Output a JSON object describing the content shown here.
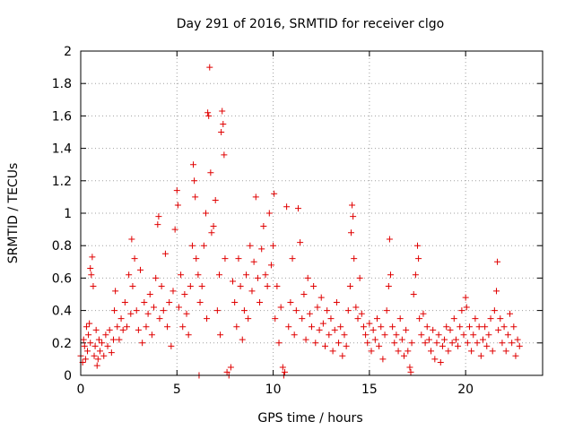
{
  "chart_data": {
    "type": "scatter",
    "title": "Day 291 of 2016, SRMTID for receiver clgo",
    "xlabel": "GPS time / hours",
    "ylabel": "SRMTID / TECUs",
    "xlim": [
      0,
      24
    ],
    "ylim": [
      0,
      2
    ],
    "xticks": [
      0,
      5,
      10,
      15,
      20
    ],
    "xtick_labels": [
      "0",
      "5",
      "10",
      "15",
      "20"
    ],
    "yticks": [
      0,
      0.2,
      0.4,
      0.6,
      0.8,
      1,
      1.2,
      1.4,
      1.6,
      1.8,
      2
    ],
    "ytick_labels": [
      "0",
      "0.2",
      "0.4",
      "0.6",
      "0.8",
      "1",
      "1.2",
      "1.4",
      "1.6",
      "1.8",
      "2"
    ],
    "grid": true,
    "marker": "+",
    "marker_color": "#e00000",
    "series": [
      {
        "name": "SRMTID",
        "points": [
          [
            0.0,
            0.12
          ],
          [
            0.1,
            0.08
          ],
          [
            0.15,
            0.22
          ],
          [
            0.2,
            0.18
          ],
          [
            0.25,
            0.1
          ],
          [
            0.3,
            0.3
          ],
          [
            0.35,
            0.15
          ],
          [
            0.4,
            0.25
          ],
          [
            0.45,
            0.32
          ],
          [
            0.5,
            0.2
          ],
          [
            0.5,
            0.66
          ],
          [
            0.55,
            0.62
          ],
          [
            0.6,
            0.73
          ],
          [
            0.65,
            0.55
          ],
          [
            0.7,
            0.12
          ],
          [
            0.75,
            0.18
          ],
          [
            0.8,
            0.28
          ],
          [
            0.85,
            0.06
          ],
          [
            0.9,
            0.1
          ],
          [
            0.95,
            0.22
          ],
          [
            1.0,
            0.15
          ],
          [
            1.1,
            0.2
          ],
          [
            1.2,
            0.12
          ],
          [
            1.3,
            0.25
          ],
          [
            1.4,
            0.18
          ],
          [
            1.5,
            0.28
          ],
          [
            1.6,
            0.14
          ],
          [
            1.7,
            0.22
          ],
          [
            1.75,
            0.4
          ],
          [
            1.8,
            0.52
          ],
          [
            1.9,
            0.3
          ],
          [
            2.0,
            0.22
          ],
          [
            2.1,
            0.35
          ],
          [
            2.2,
            0.28
          ],
          [
            2.3,
            0.45
          ],
          [
            2.4,
            0.3
          ],
          [
            2.5,
            0.62
          ],
          [
            2.6,
            0.38
          ],
          [
            2.65,
            0.84
          ],
          [
            2.7,
            0.55
          ],
          [
            2.8,
            0.72
          ],
          [
            2.9,
            0.4
          ],
          [
            3.0,
            0.28
          ],
          [
            3.1,
            0.65
          ],
          [
            3.2,
            0.2
          ],
          [
            3.3,
            0.45
          ],
          [
            3.4,
            0.3
          ],
          [
            3.5,
            0.38
          ],
          [
            3.6,
            0.5
          ],
          [
            3.7,
            0.25
          ],
          [
            3.8,
            0.42
          ],
          [
            3.9,
            0.6
          ],
          [
            4.0,
            0.93
          ],
          [
            4.05,
            0.98
          ],
          [
            4.1,
            0.35
          ],
          [
            4.2,
            0.55
          ],
          [
            4.3,
            0.4
          ],
          [
            4.4,
            0.75
          ],
          [
            4.5,
            0.3
          ],
          [
            4.6,
            0.45
          ],
          [
            4.7,
            0.18
          ],
          [
            4.8,
            0.52
          ],
          [
            4.9,
            0.9
          ],
          [
            5.0,
            1.14
          ],
          [
            5.05,
            1.05
          ],
          [
            5.1,
            0.42
          ],
          [
            5.2,
            0.62
          ],
          [
            5.3,
            0.3
          ],
          [
            5.4,
            0.5
          ],
          [
            5.5,
            0.38
          ],
          [
            5.6,
            0.25
          ],
          [
            5.7,
            0.55
          ],
          [
            5.8,
            0.8
          ],
          [
            5.85,
            1.3
          ],
          [
            5.9,
            1.2
          ],
          [
            5.95,
            1.1
          ],
          [
            6.0,
            0.72
          ],
          [
            6.1,
            0.62
          ],
          [
            6.15,
            0.0
          ],
          [
            6.2,
            0.45
          ],
          [
            6.3,
            0.55
          ],
          [
            6.4,
            0.8
          ],
          [
            6.5,
            1.0
          ],
          [
            6.55,
            0.35
          ],
          [
            6.6,
            1.62
          ],
          [
            6.65,
            1.6
          ],
          [
            6.7,
            1.9
          ],
          [
            6.75,
            1.25
          ],
          [
            6.8,
            0.88
          ],
          [
            6.9,
            0.92
          ],
          [
            7.0,
            1.08
          ],
          [
            7.1,
            0.4
          ],
          [
            7.2,
            0.62
          ],
          [
            7.25,
            0.25
          ],
          [
            7.3,
            1.5
          ],
          [
            7.35,
            1.63
          ],
          [
            7.4,
            1.55
          ],
          [
            7.45,
            1.36
          ],
          [
            7.5,
            0.72
          ],
          [
            7.6,
            0.02
          ],
          [
            7.7,
            0.0
          ],
          [
            7.8,
            0.05
          ],
          [
            7.9,
            0.58
          ],
          [
            8.0,
            0.45
          ],
          [
            8.1,
            0.3
          ],
          [
            8.2,
            0.72
          ],
          [
            8.3,
            0.55
          ],
          [
            8.4,
            0.22
          ],
          [
            8.5,
            0.4
          ],
          [
            8.6,
            0.62
          ],
          [
            8.7,
            0.35
          ],
          [
            8.8,
            0.8
          ],
          [
            8.9,
            0.52
          ],
          [
            9.0,
            0.7
          ],
          [
            9.1,
            1.1
          ],
          [
            9.2,
            0.6
          ],
          [
            9.3,
            0.45
          ],
          [
            9.4,
            0.78
          ],
          [
            9.5,
            0.92
          ],
          [
            9.6,
            0.62
          ],
          [
            9.7,
            0.55
          ],
          [
            9.8,
            1.0
          ],
          [
            9.9,
            0.68
          ],
          [
            10.0,
            0.8
          ],
          [
            10.05,
            1.12
          ],
          [
            10.1,
            0.35
          ],
          [
            10.2,
            0.55
          ],
          [
            10.3,
            0.2
          ],
          [
            10.4,
            0.42
          ],
          [
            10.5,
            0.05
          ],
          [
            10.55,
            0.0
          ],
          [
            10.6,
            0.02
          ],
          [
            10.7,
            1.04
          ],
          [
            10.8,
            0.3
          ],
          [
            10.9,
            0.45
          ],
          [
            11.0,
            0.72
          ],
          [
            11.1,
            0.25
          ],
          [
            11.2,
            0.4
          ],
          [
            11.3,
            1.03
          ],
          [
            11.4,
            0.82
          ],
          [
            11.5,
            0.35
          ],
          [
            11.6,
            0.5
          ],
          [
            11.7,
            0.22
          ],
          [
            11.8,
            0.6
          ],
          [
            11.9,
            0.38
          ],
          [
            12.0,
            0.3
          ],
          [
            12.1,
            0.55
          ],
          [
            12.2,
            0.2
          ],
          [
            12.3,
            0.42
          ],
          [
            12.4,
            0.28
          ],
          [
            12.5,
            0.48
          ],
          [
            12.6,
            0.32
          ],
          [
            12.7,
            0.18
          ],
          [
            12.8,
            0.4
          ],
          [
            12.9,
            0.25
          ],
          [
            13.0,
            0.35
          ],
          [
            13.1,
            0.15
          ],
          [
            13.2,
            0.28
          ],
          [
            13.3,
            0.45
          ],
          [
            13.4,
            0.2
          ],
          [
            13.5,
            0.3
          ],
          [
            13.6,
            0.12
          ],
          [
            13.7,
            0.25
          ],
          [
            13.8,
            0.18
          ],
          [
            13.9,
            0.4
          ],
          [
            14.0,
            0.55
          ],
          [
            14.05,
            0.88
          ],
          [
            14.1,
            1.05
          ],
          [
            14.15,
            0.98
          ],
          [
            14.2,
            0.72
          ],
          [
            14.3,
            0.42
          ],
          [
            14.4,
            0.35
          ],
          [
            14.5,
            0.6
          ],
          [
            14.6,
            0.38
          ],
          [
            14.7,
            0.3
          ],
          [
            14.8,
            0.25
          ],
          [
            14.9,
            0.2
          ],
          [
            15.0,
            0.32
          ],
          [
            15.1,
            0.15
          ],
          [
            15.2,
            0.28
          ],
          [
            15.3,
            0.22
          ],
          [
            15.4,
            0.35
          ],
          [
            15.5,
            0.18
          ],
          [
            15.6,
            0.3
          ],
          [
            15.7,
            0.1
          ],
          [
            15.8,
            0.25
          ],
          [
            15.9,
            0.4
          ],
          [
            16.0,
            0.55
          ],
          [
            16.05,
            0.84
          ],
          [
            16.1,
            0.62
          ],
          [
            16.2,
            0.3
          ],
          [
            16.3,
            0.2
          ],
          [
            16.4,
            0.25
          ],
          [
            16.5,
            0.15
          ],
          [
            16.6,
            0.35
          ],
          [
            16.7,
            0.22
          ],
          [
            16.8,
            0.12
          ],
          [
            16.9,
            0.28
          ],
          [
            17.0,
            0.15
          ],
          [
            17.1,
            0.05
          ],
          [
            17.15,
            0.02
          ],
          [
            17.2,
            0.2
          ],
          [
            17.3,
            0.5
          ],
          [
            17.4,
            0.62
          ],
          [
            17.5,
            0.8
          ],
          [
            17.55,
            0.72
          ],
          [
            17.6,
            0.35
          ],
          [
            17.7,
            0.25
          ],
          [
            17.8,
            0.38
          ],
          [
            17.9,
            0.2
          ],
          [
            18.0,
            0.3
          ],
          [
            18.1,
            0.22
          ],
          [
            18.2,
            0.15
          ],
          [
            18.3,
            0.28
          ],
          [
            18.4,
            0.1
          ],
          [
            18.5,
            0.2
          ],
          [
            18.6,
            0.25
          ],
          [
            18.7,
            0.08
          ],
          [
            18.8,
            0.18
          ],
          [
            18.9,
            0.22
          ],
          [
            19.0,
            0.3
          ],
          [
            19.1,
            0.15
          ],
          [
            19.2,
            0.28
          ],
          [
            19.3,
            0.2
          ],
          [
            19.4,
            0.35
          ],
          [
            19.5,
            0.22
          ],
          [
            19.6,
            0.18
          ],
          [
            19.7,
            0.3
          ],
          [
            19.8,
            0.4
          ],
          [
            19.9,
            0.25
          ],
          [
            20.0,
            0.48
          ],
          [
            20.05,
            0.42
          ],
          [
            20.1,
            0.2
          ],
          [
            20.2,
            0.3
          ],
          [
            20.3,
            0.15
          ],
          [
            20.4,
            0.25
          ],
          [
            20.5,
            0.35
          ],
          [
            20.6,
            0.2
          ],
          [
            20.7,
            0.3
          ],
          [
            20.8,
            0.12
          ],
          [
            20.9,
            0.22
          ],
          [
            21.0,
            0.3
          ],
          [
            21.1,
            0.18
          ],
          [
            21.2,
            0.25
          ],
          [
            21.3,
            0.35
          ],
          [
            21.4,
            0.15
          ],
          [
            21.5,
            0.4
          ],
          [
            21.6,
            0.52
          ],
          [
            21.65,
            0.7
          ],
          [
            21.7,
            0.28
          ],
          [
            21.8,
            0.35
          ],
          [
            21.9,
            0.2
          ],
          [
            22.0,
            0.3
          ],
          [
            22.1,
            0.15
          ],
          [
            22.2,
            0.25
          ],
          [
            22.3,
            0.38
          ],
          [
            22.4,
            0.2
          ],
          [
            22.5,
            0.3
          ],
          [
            22.6,
            0.12
          ],
          [
            22.7,
            0.22
          ],
          [
            22.8,
            0.18
          ]
        ]
      }
    ]
  }
}
